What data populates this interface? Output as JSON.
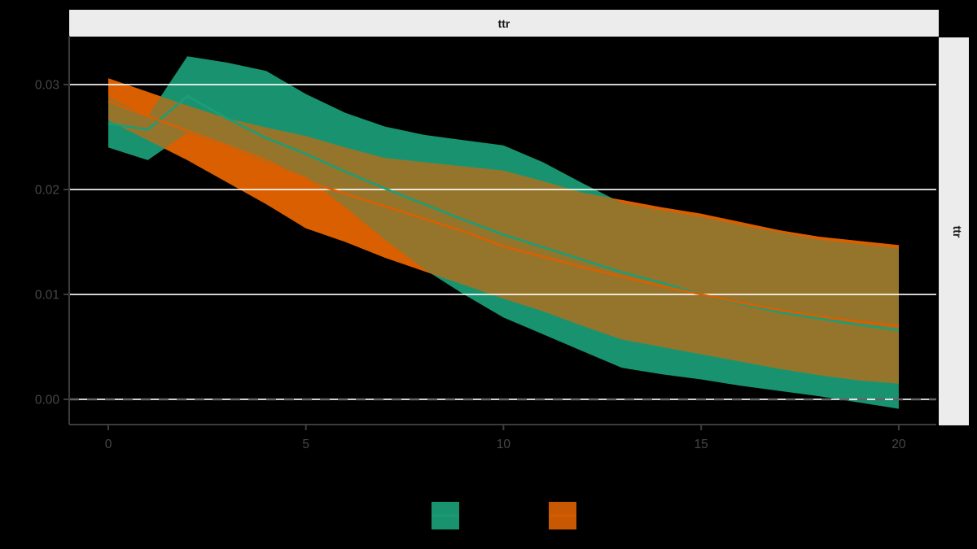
{
  "panel": {
    "strip_top_label": "ttr",
    "strip_right_label": "ttr",
    "strip_bg": "#ECECEC",
    "strip_text_color": "#1A1A1A",
    "panel_bg": "#000000",
    "gridline_color": "#FFFFFF",
    "axis_line_color": "#3C3C3C",
    "tick_text_color": "#474747"
  },
  "axes": {
    "x": {
      "tick_labels": [
        "0",
        "5",
        "10",
        "15",
        "20"
      ],
      "tick_values": [
        0,
        5,
        10,
        15,
        20
      ],
      "lim": [
        -0.988,
        20.95
      ]
    },
    "y": {
      "tick_labels": [
        "0.00",
        "0.01",
        "0.02",
        "0.03"
      ],
      "tick_values": [
        0,
        0.01,
        0.02,
        0.03
      ],
      "lim": [
        -0.0024,
        0.03465
      ]
    }
  },
  "chart_data": {
    "type": "area",
    "title": "ttr",
    "facet_strip_top": "ttr",
    "facet_strip_right": "ttr",
    "xlabel": "",
    "ylabel": "",
    "xlim": [
      -0.988,
      20.95
    ],
    "ylim": [
      -0.0024,
      0.03465
    ],
    "grid": "horizontal-only",
    "x": [
      0,
      1,
      2,
      3,
      4,
      5,
      6,
      7,
      8,
      9,
      10,
      11,
      12,
      13,
      14,
      15,
      16,
      17,
      18,
      19,
      20
    ],
    "series": [
      {
        "name": "green-series",
        "color": "#1B9E77",
        "line": [
          0.0263,
          0.0257,
          0.0289,
          0.0268,
          0.0249,
          0.0234,
          0.0217,
          0.0201,
          0.0186,
          0.0171,
          0.0157,
          0.0145,
          0.0133,
          0.0121,
          0.0111,
          0.01,
          0.0091,
          0.0083,
          0.0077,
          0.0071,
          0.0066
        ],
        "upper": [
          0.0288,
          0.027,
          0.0327,
          0.0321,
          0.0313,
          0.0291,
          0.0273,
          0.026,
          0.0252,
          0.0247,
          0.0242,
          0.0226,
          0.0206,
          0.0187,
          0.018,
          0.0174,
          0.0166,
          0.0159,
          0.0152,
          0.0148,
          0.0144
        ],
        "lower": [
          0.024,
          0.0228,
          0.0254,
          0.0241,
          0.0226,
          0.0212,
          0.0183,
          0.0152,
          0.0124,
          0.01,
          0.0078,
          0.0062,
          0.0046,
          0.003,
          0.0024,
          0.0019,
          0.0013,
          0.0008,
          0.0003,
          -0.0003,
          -0.0009
        ]
      },
      {
        "name": "orange-series",
        "color": "#D95F02",
        "line": [
          0.0284,
          0.027,
          0.0256,
          0.0242,
          0.0228,
          0.0208,
          0.0196,
          0.0184,
          0.0172,
          0.016,
          0.0146,
          0.0136,
          0.0126,
          0.0117,
          0.0108,
          0.01,
          0.0092,
          0.0085,
          0.0079,
          0.0074,
          0.007
        ],
        "upper": [
          0.0306,
          0.0293,
          0.028,
          0.0268,
          0.0259,
          0.0251,
          0.024,
          0.023,
          0.0226,
          0.0222,
          0.0218,
          0.0208,
          0.0197,
          0.019,
          0.0183,
          0.0177,
          0.0169,
          0.0161,
          0.0155,
          0.0151,
          0.0147
        ],
        "lower": [
          0.0266,
          0.0247,
          0.0228,
          0.0207,
          0.0186,
          0.0163,
          0.015,
          0.0135,
          0.0122,
          0.0109,
          0.0096,
          0.0084,
          0.007,
          0.0057,
          0.005,
          0.0043,
          0.0036,
          0.0029,
          0.0023,
          0.0018,
          0.0015
        ]
      }
    ],
    "hline": {
      "y": 0,
      "linetype": "dashed",
      "color": "#646464"
    },
    "legend": {
      "position": "bottom",
      "keys": [
        {
          "color": "#1B9E77"
        },
        {
          "color": "#D95F02"
        }
      ]
    }
  }
}
